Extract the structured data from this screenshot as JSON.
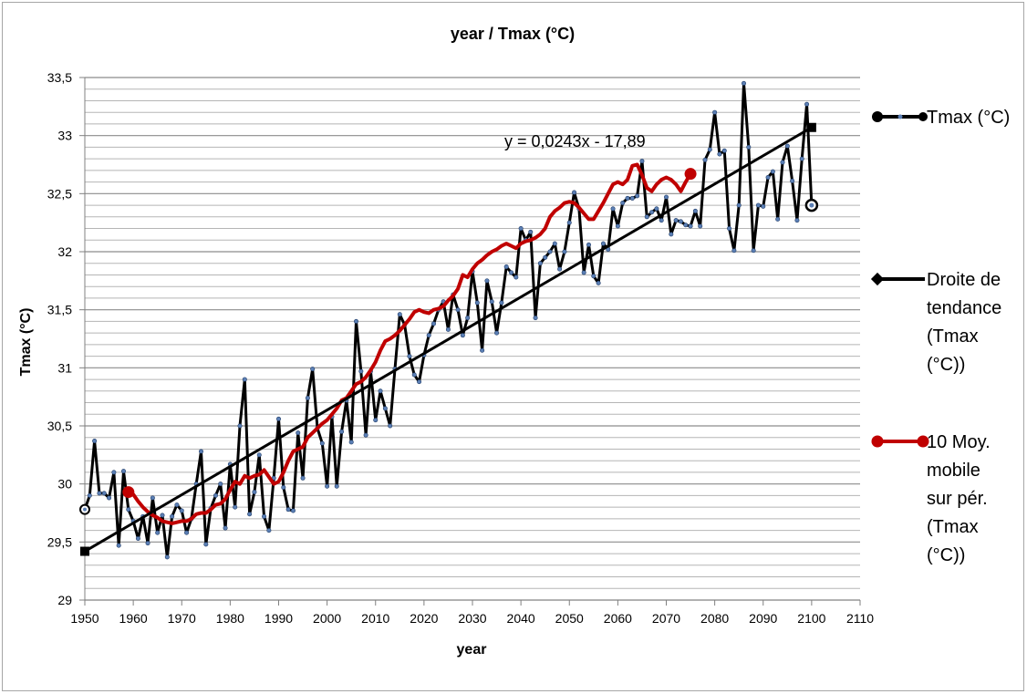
{
  "chart_data": {
    "type": "line",
    "title": "year / Tmax (°C)",
    "xlabel": "year",
    "ylabel": "Tmax (°C)",
    "xlim": [
      1950,
      2110
    ],
    "ylim": [
      29,
      33.5
    ],
    "x_ticks": [
      "1950",
      "1960",
      "1970",
      "1980",
      "1990",
      "2000",
      "2010",
      "2020",
      "2030",
      "2040",
      "2050",
      "2060",
      "2070",
      "2080",
      "2090",
      "2100",
      "2110"
    ],
    "y_ticks": [
      "29",
      "29,5",
      "30",
      "30,5",
      "31",
      "31,5",
      "32",
      "32,5",
      "33",
      "33,5"
    ],
    "grid": "horizontal, every 0.1",
    "legend_position": "right",
    "trend_equation": "y = 0,0243x - 17,89",
    "colors": {
      "tmax": "#000000",
      "marker": "#5b7fb5",
      "trend": "#000000",
      "moving_avg": "#c00000"
    },
    "legend": [
      {
        "label": "Tmax (°C)",
        "color": "#000000"
      },
      {
        "label": "Droite de tendance (Tmax (°C))",
        "lines": [
          "Droite de",
          "tendance",
          "(Tmax",
          "(°C))"
        ],
        "color": "#000000"
      },
      {
        "label": "10 Moy. mobile sur pér. (Tmax (°C))",
        "lines": [
          "10 Moy.",
          "mobile",
          "sur pér.",
          "(Tmax",
          "(°C))"
        ],
        "color": "#c00000"
      }
    ],
    "series": [
      {
        "name": "Tmax (°C)",
        "x_start": 1950,
        "values": [
          29.78,
          29.9,
          30.37,
          29.92,
          29.92,
          29.88,
          30.1,
          29.47,
          30.11,
          29.78,
          29.68,
          29.53,
          29.72,
          29.49,
          29.88,
          29.58,
          29.73,
          29.37,
          29.72,
          29.82,
          29.77,
          29.58,
          29.7,
          30.0,
          30.28,
          29.48,
          29.79,
          29.9,
          30.0,
          29.62,
          30.17,
          29.8,
          30.5,
          30.9,
          29.74,
          29.93,
          30.25,
          29.72,
          29.6,
          30.05,
          30.56,
          29.97,
          29.78,
          29.77,
          30.44,
          30.05,
          30.74,
          30.99,
          30.48,
          30.35,
          29.98,
          30.58,
          29.98,
          30.45,
          30.72,
          30.36,
          31.4,
          30.97,
          30.42,
          30.97,
          30.55,
          30.8,
          30.65,
          30.5,
          30.99,
          31.46,
          31.37,
          31.1,
          30.94,
          30.88,
          31.11,
          31.28,
          31.38,
          31.5,
          31.57,
          31.33,
          31.63,
          31.5,
          31.28,
          31.43,
          31.83,
          31.56,
          31.15,
          31.75,
          31.57,
          31.3,
          31.56,
          31.87,
          31.82,
          31.78,
          32.2,
          32.1,
          32.17,
          31.43,
          31.9,
          31.95,
          32.0,
          32.07,
          31.85,
          32.0,
          32.25,
          32.51,
          32.37,
          31.82,
          32.06,
          31.79,
          31.73,
          32.07,
          32.02,
          32.37,
          32.22,
          32.42,
          32.46,
          32.46,
          32.48,
          32.78,
          32.3,
          32.34,
          32.37,
          32.27,
          32.47,
          32.15,
          32.27,
          32.26,
          32.23,
          32.22,
          32.35,
          32.22,
          32.79,
          32.88,
          33.2,
          32.84,
          32.87,
          32.2,
          32.01,
          32.4,
          33.45,
          32.9,
          32.01,
          32.4,
          32.39,
          32.64,
          32.69,
          32.28,
          32.77,
          32.91,
          32.61,
          32.27,
          32.8,
          33.27,
          32.4
        ]
      },
      {
        "name": "Droite de tendance (Tmax (°C))",
        "type": "linear",
        "x": [
          1950,
          2100
        ],
        "y": [
          29.42,
          33.07
        ]
      },
      {
        "name": "10 Moy. mobile sur pér. (Tmax (°C))",
        "x_start": 1959,
        "values": [
          29.93,
          29.91,
          29.85,
          29.8,
          29.76,
          29.73,
          29.71,
          29.68,
          29.67,
          29.66,
          29.67,
          29.68,
          29.68,
          29.7,
          29.74,
          29.75,
          29.75,
          29.78,
          29.82,
          29.83,
          29.87,
          29.95,
          30.02,
          30.0,
          30.07,
          30.05,
          30.07,
          30.08,
          30.12,
          30.06,
          30.0,
          30.02,
          30.1,
          30.2,
          30.28,
          30.3,
          30.32,
          30.4,
          30.44,
          30.48,
          30.52,
          30.55,
          30.6,
          30.65,
          30.72,
          30.74,
          30.8,
          30.86,
          30.88,
          30.92,
          30.98,
          31.05,
          31.15,
          31.23,
          31.25,
          31.28,
          31.32,
          31.37,
          31.42,
          31.48,
          31.5,
          31.48,
          31.47,
          31.5,
          31.51,
          31.53,
          31.58,
          31.62,
          31.68,
          31.8,
          31.78,
          31.85,
          31.9,
          31.93,
          31.97,
          32.0,
          32.02,
          32.05,
          32.07,
          32.05,
          32.03,
          32.07,
          32.09,
          32.1,
          32.12,
          32.15,
          32.2,
          32.3,
          32.35,
          32.38,
          32.42,
          32.43,
          32.42,
          32.38,
          32.33,
          32.28,
          32.28,
          32.35,
          32.42,
          32.5,
          32.58,
          32.6,
          32.58,
          32.62,
          32.74,
          32.75,
          32.66,
          32.55,
          32.52,
          32.58,
          32.62,
          32.64,
          32.62,
          32.58,
          32.52,
          32.6,
          32.67
        ]
      }
    ]
  }
}
